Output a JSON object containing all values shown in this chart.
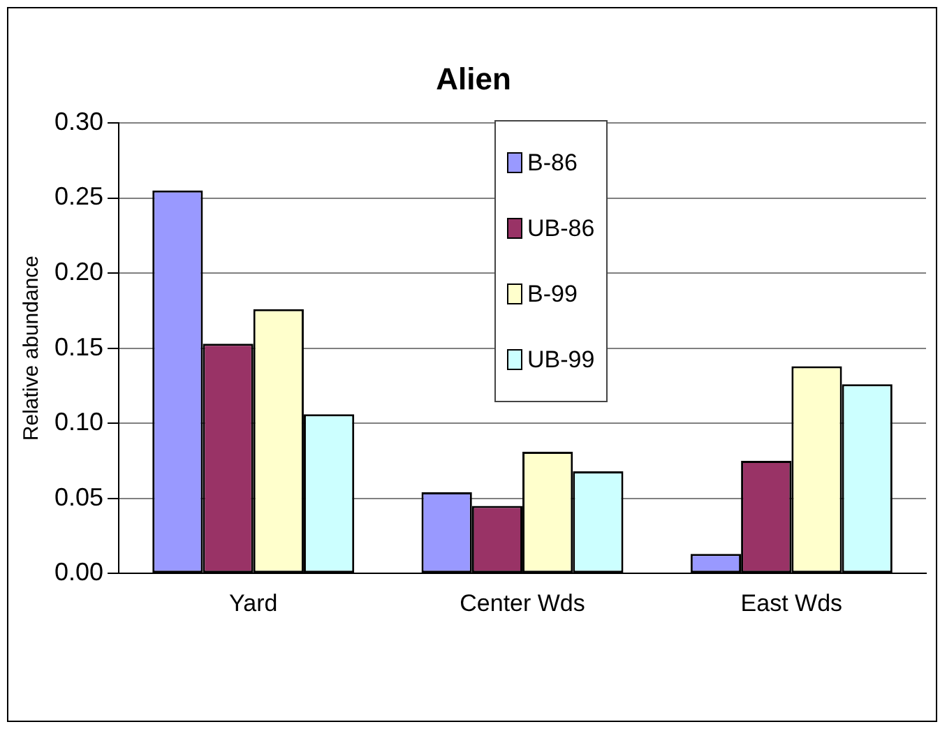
{
  "chart_data": {
    "type": "bar",
    "title": "Alien",
    "ylabel": "Relative abundance",
    "categories": [
      "Yard",
      "Center Wds",
      "East Wds"
    ],
    "series": [
      {
        "name": "B-86",
        "color": "#9999ff",
        "values": [
          0.255,
          0.054,
          0.013
        ]
      },
      {
        "name": "UB-86",
        "color": "#993366",
        "values": [
          0.153,
          0.045,
          0.075
        ]
      },
      {
        "name": "B-99",
        "color": "#ffffcc",
        "values": [
          0.176,
          0.081,
          0.138
        ]
      },
      {
        "name": "UB-99",
        "color": "#ccffff",
        "values": [
          0.106,
          0.068,
          0.126
        ]
      }
    ],
    "ylim": [
      0,
      0.3
    ],
    "yticks": [
      {
        "value": 0,
        "label": "0.00"
      },
      {
        "value": 0.05,
        "label": "0.05"
      },
      {
        "value": 0.1,
        "label": "0.10"
      },
      {
        "value": 0.15,
        "label": "0.15"
      },
      {
        "value": 0.2,
        "label": "0.20"
      },
      {
        "value": 0.25,
        "label": "0.25"
      },
      {
        "value": 0.3,
        "label": "0.30"
      }
    ],
    "grid": "y",
    "legend": "top"
  }
}
